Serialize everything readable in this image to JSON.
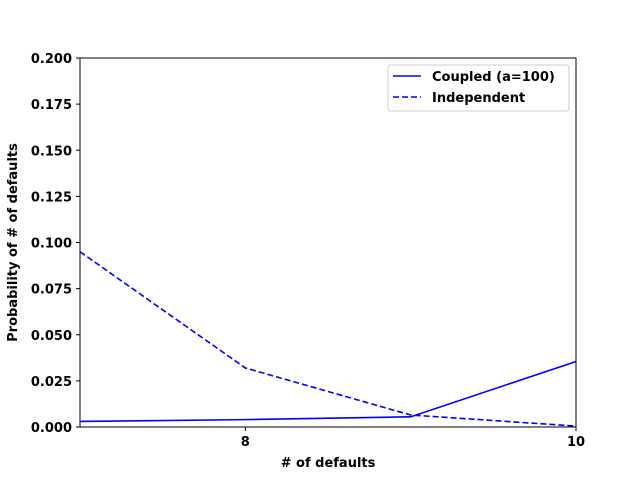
{
  "chart_data": {
    "type": "line",
    "title": "",
    "xlabel": "# of defaults",
    "ylabel": "Probability of # of defaults",
    "xlim": [
      7,
      10
    ],
    "ylim": [
      0,
      0.2
    ],
    "xticks": [
      8,
      10
    ],
    "xtick_labels": [
      "8",
      "10"
    ],
    "yticks": [
      0,
      0.025,
      0.05,
      0.075,
      0.1,
      0.125,
      0.15,
      0.175,
      0.2
    ],
    "ytick_labels": [
      "0.000",
      "0.025",
      "0.050",
      "0.075",
      "0.100",
      "0.125",
      "0.150",
      "0.175",
      "0.200"
    ],
    "grid": false,
    "legend_position": "top-right",
    "series": [
      {
        "name": "Coupled (a=100)",
        "color": "#0000ff",
        "dash": "solid",
        "x": [
          7,
          8,
          9,
          10
        ],
        "y": [
          0.003,
          0.004,
          0.0055,
          0.0355
        ]
      },
      {
        "name": "Independent",
        "color": "#0000ff",
        "dash": "dashed",
        "x": [
          7,
          8,
          9,
          10
        ],
        "y": [
          0.095,
          0.032,
          0.0065,
          0.0005
        ]
      }
    ]
  }
}
